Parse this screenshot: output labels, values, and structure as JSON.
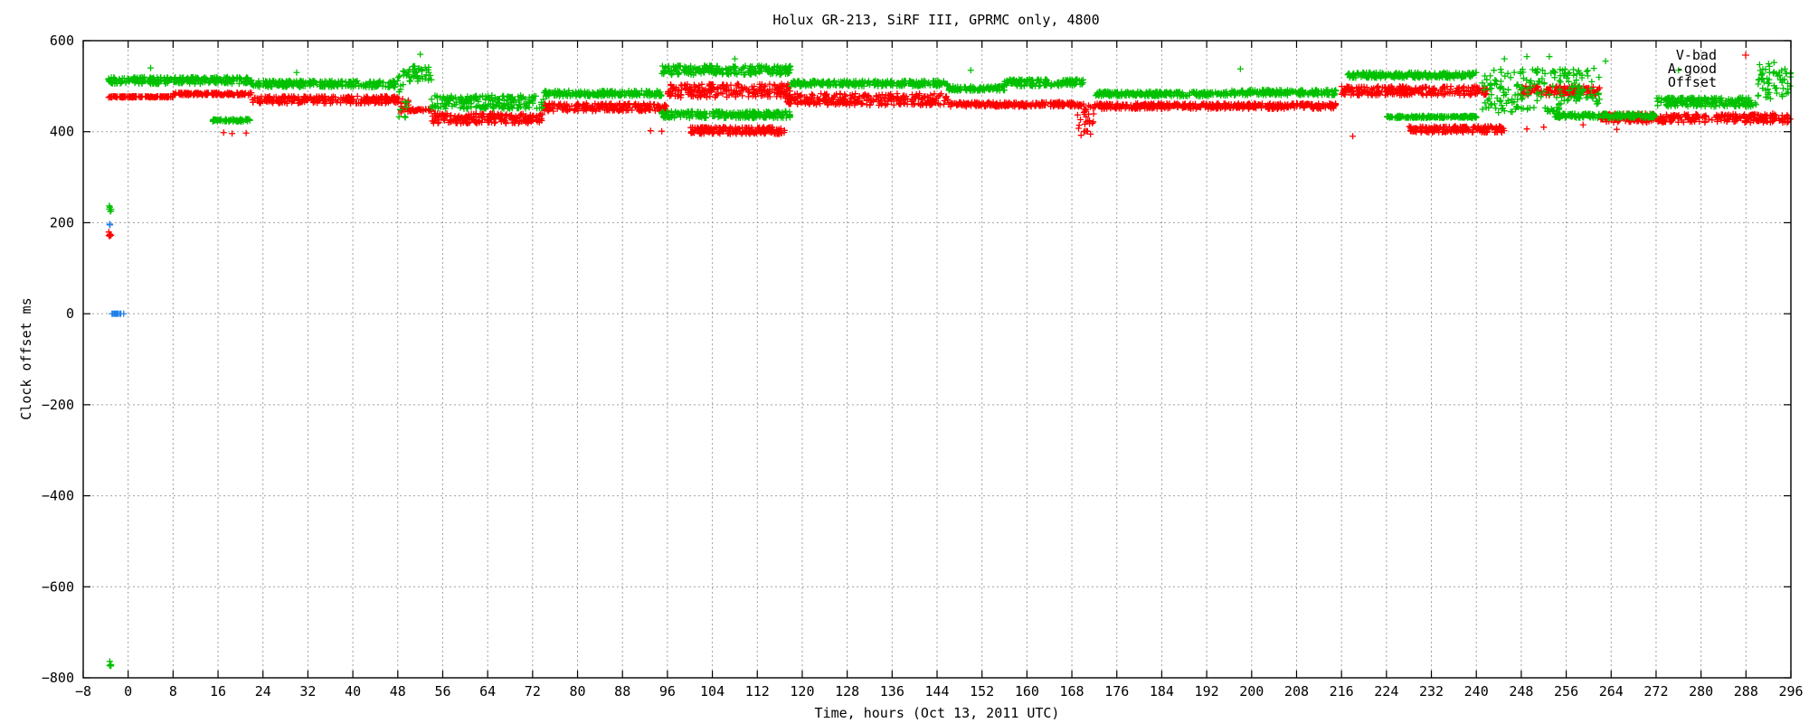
{
  "chart_data": {
    "type": "scatter",
    "title": "Holux GR-213, SiRF III, GPRMC only, 4800",
    "xlabel": "Time, hours (Oct 13, 2011 UTC)",
    "ylabel": "Clock offset ms",
    "xlim": [
      -8,
      296
    ],
    "ylim": [
      -800,
      600
    ],
    "xticks": [
      -8,
      0,
      8,
      16,
      24,
      32,
      40,
      48,
      56,
      64,
      72,
      80,
      88,
      96,
      104,
      112,
      120,
      128,
      136,
      144,
      152,
      160,
      168,
      176,
      184,
      192,
      200,
      208,
      216,
      224,
      232,
      240,
      248,
      256,
      264,
      272,
      280,
      288,
      296
    ],
    "yticks": [
      -800,
      -600,
      -400,
      -200,
      0,
      200,
      400,
      600
    ],
    "grid": true,
    "legend_position": "top-right",
    "series": [
      {
        "name": "V-bad",
        "color": "#ff0000",
        "marker": "plus",
        "segments": [
          {
            "x": [
              -3.6,
              -3.0
            ],
            "y": [
              165,
              180
            ]
          },
          {
            "x": [
              -3.5,
              8
            ],
            "y": [
              475,
              478
            ]
          },
          {
            "x": [
              8,
              22
            ],
            "y": [
              480,
              486
            ]
          },
          {
            "x": [
              22,
              48
            ],
            "y": [
              462,
              478
            ]
          },
          {
            "x": [
              48,
              50
            ],
            "y": [
              440,
              475
            ]
          },
          {
            "x": [
              50,
              54
            ],
            "y": [
              445,
              450
            ]
          },
          {
            "x": [
              54,
              74
            ],
            "y": [
              418,
              440
            ]
          },
          {
            "x": [
              74,
              96
            ],
            "y": [
              445,
              462
            ]
          },
          {
            "x": [
              96,
              118
            ],
            "y": [
              475,
              505
            ]
          },
          {
            "x": [
              100,
              117
            ],
            "y": [
              395,
              410
            ]
          },
          {
            "x": [
              117,
              146
            ],
            "y": [
              458,
              484
            ]
          },
          {
            "x": [
              146,
              170
            ],
            "y": [
              455,
              465
            ]
          },
          {
            "x": [
              169,
              172
            ],
            "y": [
              390,
              465
            ]
          },
          {
            "x": [
              172,
              215
            ],
            "y": [
              450,
              462
            ]
          },
          {
            "x": [
              216,
              242
            ],
            "y": [
              480,
              500
            ]
          },
          {
            "x": [
              228,
              245
            ],
            "y": [
              398,
              412
            ]
          },
          {
            "x": [
              248,
              262
            ],
            "y": [
              480,
              500
            ]
          },
          {
            "x": [
              262,
              290
            ],
            "y": [
              420,
              440
            ]
          },
          {
            "x": [
              290,
              296
            ],
            "y": [
              420,
              440
            ]
          }
        ],
        "scattered": [
          {
            "x": 17,
            "y": 398
          },
          {
            "x": 18.5,
            "y": 396
          },
          {
            "x": 21,
            "y": 397
          },
          {
            "x": 93,
            "y": 402
          },
          {
            "x": 95,
            "y": 401
          },
          {
            "x": 105,
            "y": 398
          },
          {
            "x": 218,
            "y": 390
          },
          {
            "x": 232,
            "y": 404
          },
          {
            "x": 236,
            "y": 410
          },
          {
            "x": 249,
            "y": 406
          },
          {
            "x": 252,
            "y": 410
          },
          {
            "x": 259,
            "y": 415
          },
          {
            "x": 265,
            "y": 405
          }
        ]
      },
      {
        "name": "A-good",
        "color": "#00c000",
        "marker": "plus",
        "segments": [
          {
            "x": [
              -3.6,
              -3.0
            ],
            "y": [
              225,
              240
            ]
          },
          {
            "x": [
              -3.6,
              -3.0
            ],
            "y": [
              -775,
              -760
            ]
          },
          {
            "x": [
              -3.5,
              22
            ],
            "y": [
              505,
              520
            ]
          },
          {
            "x": [
              22,
              48
            ],
            "y": [
              498,
              512
            ]
          },
          {
            "x": [
              15,
              22
            ],
            "y": [
              422,
              428
            ]
          },
          {
            "x": [
              48,
              50
            ],
            "y": [
              430,
              550
            ]
          },
          {
            "x": [
              50,
              54
            ],
            "y": [
              510,
              545
            ]
          },
          {
            "x": [
              54,
              74
            ],
            "y": [
              450,
              480
            ]
          },
          {
            "x": [
              74,
              95
            ],
            "y": [
              478,
              490
            ]
          },
          {
            "x": [
              95,
              118
            ],
            "y": [
              525,
              545
            ]
          },
          {
            "x": [
              95,
              118
            ],
            "y": [
              430,
              445
            ]
          },
          {
            "x": [
              118,
              146
            ],
            "y": [
              500,
              512
            ]
          },
          {
            "x": [
              146,
              156
            ],
            "y": [
              490,
              500
            ]
          },
          {
            "x": [
              156,
              170
            ],
            "y": [
              500,
              515
            ]
          },
          {
            "x": [
              172,
              196
            ],
            "y": [
              478,
              488
            ]
          },
          {
            "x": [
              196,
              215
            ],
            "y": [
              480,
              492
            ]
          },
          {
            "x": [
              217,
              240
            ],
            "y": [
              518,
              530
            ]
          },
          {
            "x": [
              224,
              240
            ],
            "y": [
              430,
              435
            ]
          },
          {
            "x": [
              241,
              247
            ],
            "y": [
              440,
              540
            ]
          },
          {
            "x": [
              247,
              255
            ],
            "y": [
              440,
              540
            ]
          },
          {
            "x": [
              255,
              262
            ],
            "y": [
              460,
              540
            ]
          },
          {
            "x": [
              254,
              272
            ],
            "y": [
              430,
              440
            ]
          },
          {
            "x": [
              272,
              290
            ],
            "y": [
              455,
              475
            ]
          },
          {
            "x": [
              290,
              296
            ],
            "y": [
              470,
              550
            ]
          }
        ],
        "scattered": [
          {
            "x": 4,
            "y": 540
          },
          {
            "x": 30,
            "y": 530
          },
          {
            "x": 52,
            "y": 570
          },
          {
            "x": 108,
            "y": 560
          },
          {
            "x": 150,
            "y": 535
          },
          {
            "x": 198,
            "y": 538
          },
          {
            "x": 245,
            "y": 560
          },
          {
            "x": 249,
            "y": 565
          },
          {
            "x": 253,
            "y": 565
          },
          {
            "x": 263,
            "y": 555
          },
          {
            "x": 276,
            "y": 535
          },
          {
            "x": 293,
            "y": 552
          }
        ]
      },
      {
        "name": "Offset",
        "color": "#1e7fe6",
        "marker": "plus",
        "segments": [
          {
            "x": [
              -3.3,
              -3.2
            ],
            "y": [
              195,
              197
            ]
          },
          {
            "x": [
              -3.0,
              -0.6
            ],
            "y": [
              0,
              0
            ]
          }
        ],
        "scattered": []
      }
    ]
  }
}
